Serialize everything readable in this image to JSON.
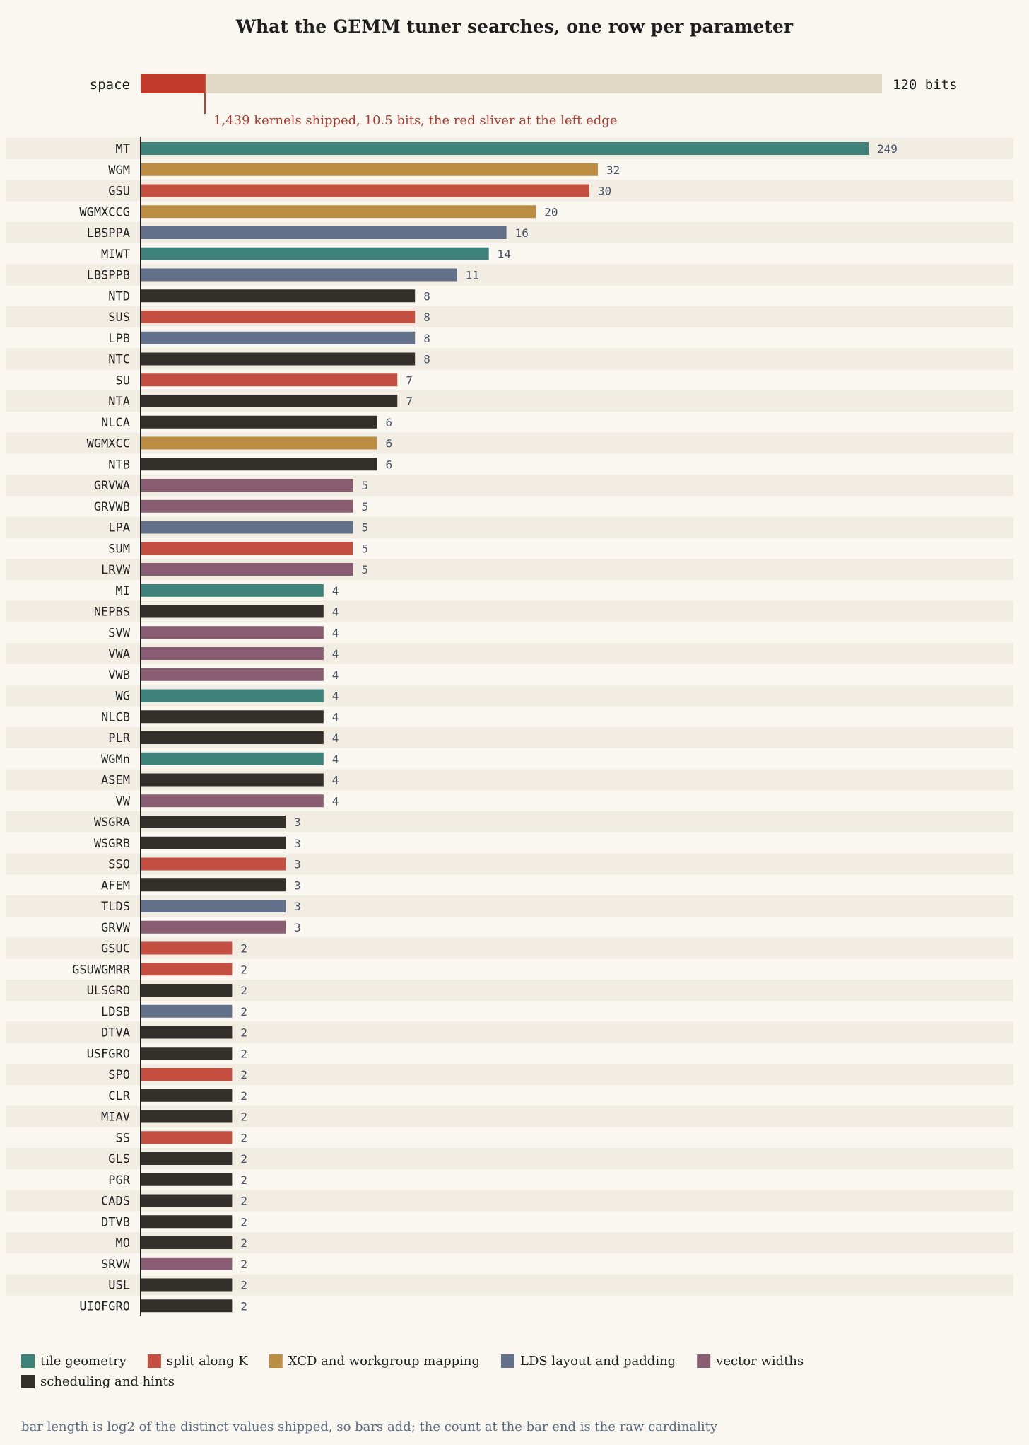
{
  "chart_data": {
    "type": "bar",
    "orientation": "horizontal",
    "title": "What the GEMM tuner searches, one row per parameter",
    "scale": "log2 of distinct values",
    "space": {
      "label": "space",
      "total_label": "120 bits",
      "total_bits": 120,
      "shipped_bits": 10.5,
      "annotation": "1,439 kernels shipped, 10.5 bits, the red sliver at the left edge"
    },
    "categories": [
      "MT",
      "WGM",
      "GSU",
      "WGMXCCG",
      "LBSPPA",
      "MIWT",
      "LBSPPB",
      "NTD",
      "SUS",
      "LPB",
      "NTC",
      "SU",
      "NTA",
      "NLCA",
      "WGMXCC",
      "NTB",
      "GRVWA",
      "GRVWB",
      "LPA",
      "SUM",
      "LRVW",
      "MI",
      "NEPBS",
      "SVW",
      "VWA",
      "VWB",
      "WG",
      "NLCB",
      "PLR",
      "WGMn",
      "ASEM",
      "VW",
      "WSGRA",
      "WSGRB",
      "SSO",
      "AFEM",
      "TLDS",
      "GRVW",
      "GSUC",
      "GSUWGMRR",
      "ULSGRO",
      "LDSB",
      "DTVA",
      "USFGRO",
      "SPO",
      "CLR",
      "MIAV",
      "SS",
      "GLS",
      "PGR",
      "CADS",
      "DTVB",
      "MO",
      "SRVW",
      "USL",
      "UIOFGRO"
    ],
    "values": [
      249,
      32,
      30,
      20,
      16,
      14,
      11,
      8,
      8,
      8,
      8,
      7,
      7,
      6,
      6,
      6,
      5,
      5,
      5,
      5,
      5,
      4,
      4,
      4,
      4,
      4,
      4,
      4,
      4,
      4,
      4,
      4,
      3,
      3,
      3,
      3,
      3,
      3,
      2,
      2,
      2,
      2,
      2,
      2,
      2,
      2,
      2,
      2,
      2,
      2,
      2,
      2,
      2,
      2,
      2,
      2
    ],
    "groups": [
      "tile",
      "xcd",
      "split",
      "xcd",
      "lds",
      "tile",
      "lds",
      "sched",
      "split",
      "lds",
      "sched",
      "split",
      "sched",
      "sched",
      "xcd",
      "sched",
      "vec",
      "vec",
      "lds",
      "split",
      "vec",
      "tile",
      "sched",
      "vec",
      "vec",
      "vec",
      "tile",
      "sched",
      "sched",
      "tile",
      "sched",
      "vec",
      "sched",
      "sched",
      "split",
      "sched",
      "lds",
      "vec",
      "split",
      "split",
      "sched",
      "lds",
      "sched",
      "sched",
      "split",
      "sched",
      "sched",
      "split",
      "sched",
      "sched",
      "sched",
      "sched",
      "sched",
      "vec",
      "sched",
      "sched"
    ],
    "legend": [
      {
        "key": "tile",
        "label": "tile geometry",
        "color": "#3d8179"
      },
      {
        "key": "split",
        "label": "split along K",
        "color": "#c44e3f"
      },
      {
        "key": "xcd",
        "label": "XCD and workgroup mapping",
        "color": "#bb8e44"
      },
      {
        "key": "lds",
        "label": "LDS layout and padding",
        "color": "#627189"
      },
      {
        "key": "vec",
        "label": "vector widths",
        "color": "#885d71"
      },
      {
        "key": "sched",
        "label": "scheduling and hints",
        "color": "#33302c"
      }
    ],
    "footnote": "bar length is log2 of the distinct values shipped, so bars add; the count at the bar end is the raw cardinality",
    "grid": false,
    "legend_position": "bottom"
  },
  "colors": {
    "background": "#faf7f0",
    "row_stripe": "#f2ede2",
    "space_track": "#e2d9c5",
    "space_fill": "#c0392b",
    "annotation": "#b03a2e"
  }
}
